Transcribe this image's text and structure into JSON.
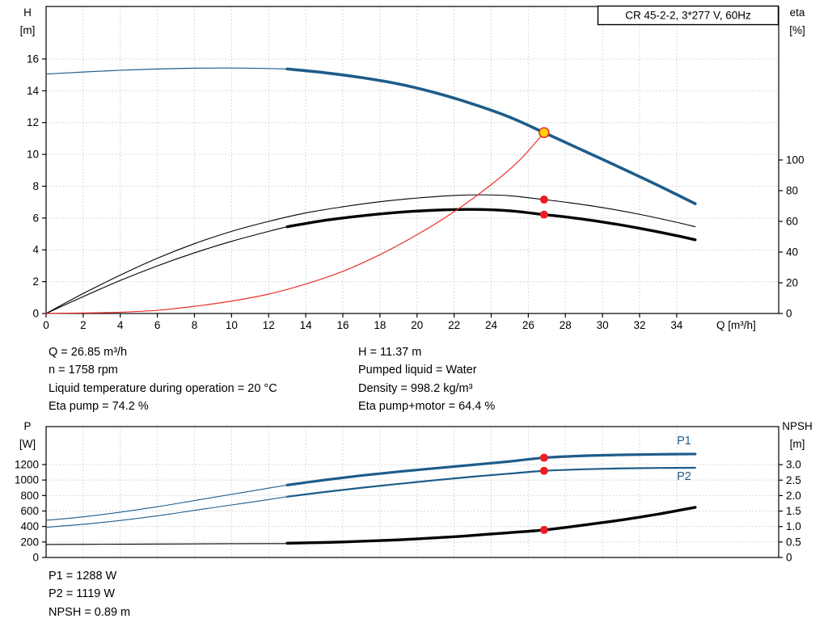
{
  "colors": {
    "blue": "#1e5c8a",
    "red": "#e8312d",
    "dotred": "#ed1c24",
    "yellow": "#ffd400",
    "black": "#000000",
    "grid": "#cccccc"
  },
  "info_top_left": {
    "line1": "Q = 26.85 m³/h",
    "line2": "n = 1758 rpm",
    "line3": "Liquid temperature during operation = 20 °C",
    "line4": "Eta pump = 74.2 %"
  },
  "info_top_right": {
    "line1": "H = 11.37 m",
    "line2": "Pumped liquid = Water",
    "line3": "Density = 998.2 kg/m³",
    "line4": "Eta pump+motor = 64.4 %"
  },
  "info_bottom": {
    "line1": "P1 = 1288 W",
    "line2": "P2 = 1119 W",
    "line3": "NPSH = 0.89 m"
  },
  "chart_data": [
    {
      "type": "line",
      "title": "CR 45-2-2, 3*277 V, 60Hz",
      "xlabel": "Q [m³/h]",
      "ylabel_left": [
        "H",
        "[m]"
      ],
      "ylabel_right": [
        "eta",
        "[%]"
      ],
      "xlim": [
        0,
        39.5
      ],
      "xticks": [
        0,
        2,
        4,
        6,
        8,
        10,
        12,
        14,
        16,
        18,
        20,
        22,
        24,
        26,
        28,
        30,
        32,
        34
      ],
      "xtick_labels": [
        "0",
        "2",
        "4",
        "6",
        "8",
        "10",
        "12",
        "14",
        "16",
        "18",
        "20",
        "22",
        "24",
        "26",
        "28",
        "30",
        "32",
        "34"
      ],
      "ylim_left": [
        0,
        19.3
      ],
      "yticks_left": [
        0,
        2,
        4,
        6,
        8,
        10,
        12,
        14,
        16
      ],
      "ytick_labels_left": [
        "0",
        "2",
        "4",
        "6",
        "8",
        "10",
        "12",
        "14",
        "16"
      ],
      "ylim_right": [
        0,
        200
      ],
      "yticks_right": [
        0,
        20,
        40,
        60,
        80,
        100
      ],
      "ytick_labels_right": [
        "0",
        "20",
        "40",
        "60",
        "80",
        "100"
      ],
      "series": [
        {
          "name": "head-curve-thin",
          "axis": "left",
          "color": "blue",
          "width": 1.2,
          "points": [
            [
              0,
              15.05
            ],
            [
              2,
              15.18
            ],
            [
              4,
              15.29
            ],
            [
              6,
              15.37
            ],
            [
              8,
              15.42
            ],
            [
              10,
              15.43
            ],
            [
              12,
              15.4
            ],
            [
              13,
              15.37
            ]
          ]
        },
        {
          "name": "head-curve-thick",
          "axis": "left",
          "color": "blue",
          "width": 3.6,
          "points": [
            [
              13,
              15.37
            ],
            [
              15,
              15.14
            ],
            [
              17,
              14.83
            ],
            [
              19,
              14.43
            ],
            [
              21,
              13.87
            ],
            [
              23,
              13.17
            ],
            [
              25,
              12.34
            ],
            [
              26.85,
              11.37
            ],
            [
              29,
              10.22
            ],
            [
              31,
              9.15
            ],
            [
              33,
              8.05
            ],
            [
              35,
              6.9
            ]
          ]
        },
        {
          "name": "eta-pump-curve",
          "axis": "right",
          "color": "black",
          "width": 1.1,
          "points": [
            [
              0,
              0
            ],
            [
              2,
              13
            ],
            [
              4,
              25
            ],
            [
              6,
              36
            ],
            [
              8,
              45.5
            ],
            [
              10,
              53.5
            ],
            [
              12,
              60
            ],
            [
              14,
              65.5
            ],
            [
              16,
              69.5
            ],
            [
              18,
              72.8
            ],
            [
              20,
              75.2
            ],
            [
              22,
              76.9
            ],
            [
              23.5,
              77.3
            ],
            [
              25,
              76.7
            ],
            [
              26.85,
              74.2
            ],
            [
              28,
              72.5
            ],
            [
              30,
              69
            ],
            [
              32,
              64.6
            ],
            [
              34,
              59.4
            ],
            [
              35,
              56.5
            ]
          ]
        },
        {
          "name": "eta-pump-motor-thin",
          "axis": "right",
          "color": "black",
          "width": 1.1,
          "points": [
            [
              0,
              0
            ],
            [
              2,
              11
            ],
            [
              4,
              21.5
            ],
            [
              6,
              31
            ],
            [
              8,
              39.5
            ],
            [
              10,
              47
            ],
            [
              12,
              53.5
            ],
            [
              13,
              56.5
            ]
          ]
        },
        {
          "name": "eta-pump-motor-thick",
          "axis": "right",
          "color": "black",
          "width": 3.4,
          "points": [
            [
              13,
              56.5
            ],
            [
              15,
              60.6
            ],
            [
              17,
              63.6
            ],
            [
              19,
              65.9
            ],
            [
              21,
              67.3
            ],
            [
              23,
              67.8
            ],
            [
              25,
              66.9
            ],
            [
              26.85,
              64.4
            ],
            [
              28,
              62.9
            ],
            [
              30,
              59.6
            ],
            [
              32,
              55.5
            ],
            [
              34,
              50.7
            ],
            [
              35,
              48
            ]
          ]
        },
        {
          "name": "system-curve",
          "axis": "left",
          "color": "red",
          "width": 1.2,
          "points": [
            [
              0,
              0
            ],
            [
              2,
              0.03
            ],
            [
              4,
              0.08
            ],
            [
              6,
              0.2
            ],
            [
              8,
              0.45
            ],
            [
              10,
              0.78
            ],
            [
              12,
              1.22
            ],
            [
              14,
              1.85
            ],
            [
              16,
              2.65
            ],
            [
              18,
              3.7
            ],
            [
              20,
              4.95
            ],
            [
              22,
              6.4
            ],
            [
              24,
              8.1
            ],
            [
              25.5,
              9.6
            ],
            [
              26.85,
              11.37
            ]
          ]
        }
      ],
      "markers": [
        {
          "name": "duty-point",
          "axis": "left",
          "x": 26.85,
          "y": 11.37,
          "r": 6,
          "fill": "yellow",
          "stroke": "red"
        },
        {
          "name": "eta-pump-point",
          "axis": "right",
          "x": 26.85,
          "y": 74.2,
          "r": 5,
          "fill": "dotred"
        },
        {
          "name": "eta-pump-motor-point",
          "axis": "right",
          "x": 26.85,
          "y": 64.4,
          "r": 5,
          "fill": "dotred"
        }
      ],
      "annotations": []
    },
    {
      "type": "line",
      "title": "",
      "xlabel": "",
      "ylabel_left": [
        "P",
        "[W]"
      ],
      "ylabel_right": [
        "NPSH",
        "[m]"
      ],
      "xlim": [
        0,
        39.5
      ],
      "xticks": [
        0,
        2,
        4,
        6,
        8,
        10,
        12,
        14,
        16,
        18,
        20,
        22,
        24,
        26,
        28,
        30,
        32,
        34
      ],
      "xtick_labels": [],
      "ylim_left": [
        0,
        1690
      ],
      "yticks_left": [
        0,
        200,
        400,
        600,
        800,
        1000,
        1200
      ],
      "ytick_labels_left": [
        "0",
        "200",
        "400",
        "600",
        "800",
        "1000",
        "1200"
      ],
      "ylim_right": [
        0,
        4.23
      ],
      "yticks_right": [
        0,
        0.5,
        1,
        1.5,
        2,
        2.5,
        3
      ],
      "ytick_labels_right": [
        "0",
        "0.5",
        "1.0",
        "1.5",
        "2.0",
        "2.5",
        "3.0"
      ],
      "series": [
        {
          "name": "p1-curve-thin",
          "axis": "left",
          "color": "blue",
          "width": 1.1,
          "points": [
            [
              0,
              480
            ],
            [
              2,
              525
            ],
            [
              4,
              585
            ],
            [
              6,
              655
            ],
            [
              8,
              735
            ],
            [
              10,
              815
            ],
            [
              12,
              895
            ],
            [
              13,
              935
            ]
          ]
        },
        {
          "name": "p1-curve-thick",
          "axis": "left",
          "color": "blue",
          "width": 3.2,
          "points": [
            [
              13,
              935
            ],
            [
              15,
              1000
            ],
            [
              17,
              1058
            ],
            [
              19,
              1108
            ],
            [
              21,
              1152
            ],
            [
              23,
              1196
            ],
            [
              25,
              1240
            ],
            [
              26.85,
              1288
            ],
            [
              29,
              1313
            ],
            [
              31,
              1325
            ],
            [
              33,
              1332
            ],
            [
              35,
              1336
            ]
          ]
        },
        {
          "name": "p2-curve-thin",
          "axis": "left",
          "color": "blue",
          "width": 1.1,
          "points": [
            [
              0,
              390
            ],
            [
              2,
              428
            ],
            [
              4,
              478
            ],
            [
              6,
              538
            ],
            [
              8,
              608
            ],
            [
              10,
              678
            ],
            [
              12,
              748
            ],
            [
              13,
              785
            ]
          ]
        },
        {
          "name": "p2-curve-thick",
          "axis": "left",
          "color": "blue",
          "width": 2.2,
          "points": [
            [
              13,
              785
            ],
            [
              15,
              845
            ],
            [
              17,
              900
            ],
            [
              19,
              950
            ],
            [
              21,
              998
            ],
            [
              23,
              1043
            ],
            [
              25,
              1083
            ],
            [
              26.85,
              1119
            ],
            [
              29,
              1139
            ],
            [
              31,
              1150
            ],
            [
              33,
              1156
            ],
            [
              35,
              1158
            ]
          ]
        },
        {
          "name": "npsh-curve-thin",
          "axis": "right",
          "color": "black",
          "width": 1.1,
          "points": [
            [
              0,
              0.42
            ],
            [
              4,
              0.43
            ],
            [
              8,
              0.44
            ],
            [
              13,
              0.45
            ]
          ]
        },
        {
          "name": "npsh-curve-thick",
          "axis": "right",
          "color": "black",
          "width": 3.4,
          "points": [
            [
              13,
              0.46
            ],
            [
              16,
              0.5
            ],
            [
              19,
              0.57
            ],
            [
              22,
              0.67
            ],
            [
              24,
              0.76
            ],
            [
              26.85,
              0.89
            ],
            [
              29,
              1.05
            ],
            [
              31,
              1.21
            ],
            [
              33,
              1.4
            ],
            [
              35,
              1.62
            ]
          ]
        }
      ],
      "markers": [
        {
          "name": "p1-point",
          "axis": "left",
          "x": 26.85,
          "y": 1288,
          "r": 5,
          "fill": "dotred"
        },
        {
          "name": "p2-point",
          "axis": "left",
          "x": 26.85,
          "y": 1119,
          "r": 5,
          "fill": "dotred"
        },
        {
          "name": "npsh-point",
          "axis": "right",
          "x": 26.85,
          "y": 0.89,
          "r": 5,
          "fill": "dotred"
        }
      ],
      "annotations": [
        {
          "text": "P1",
          "axis": "left",
          "x": 34.4,
          "y": 1460,
          "color": "blue"
        },
        {
          "text": "P2",
          "axis": "left",
          "x": 34.4,
          "y": 1000,
          "color": "blue"
        }
      ]
    }
  ]
}
